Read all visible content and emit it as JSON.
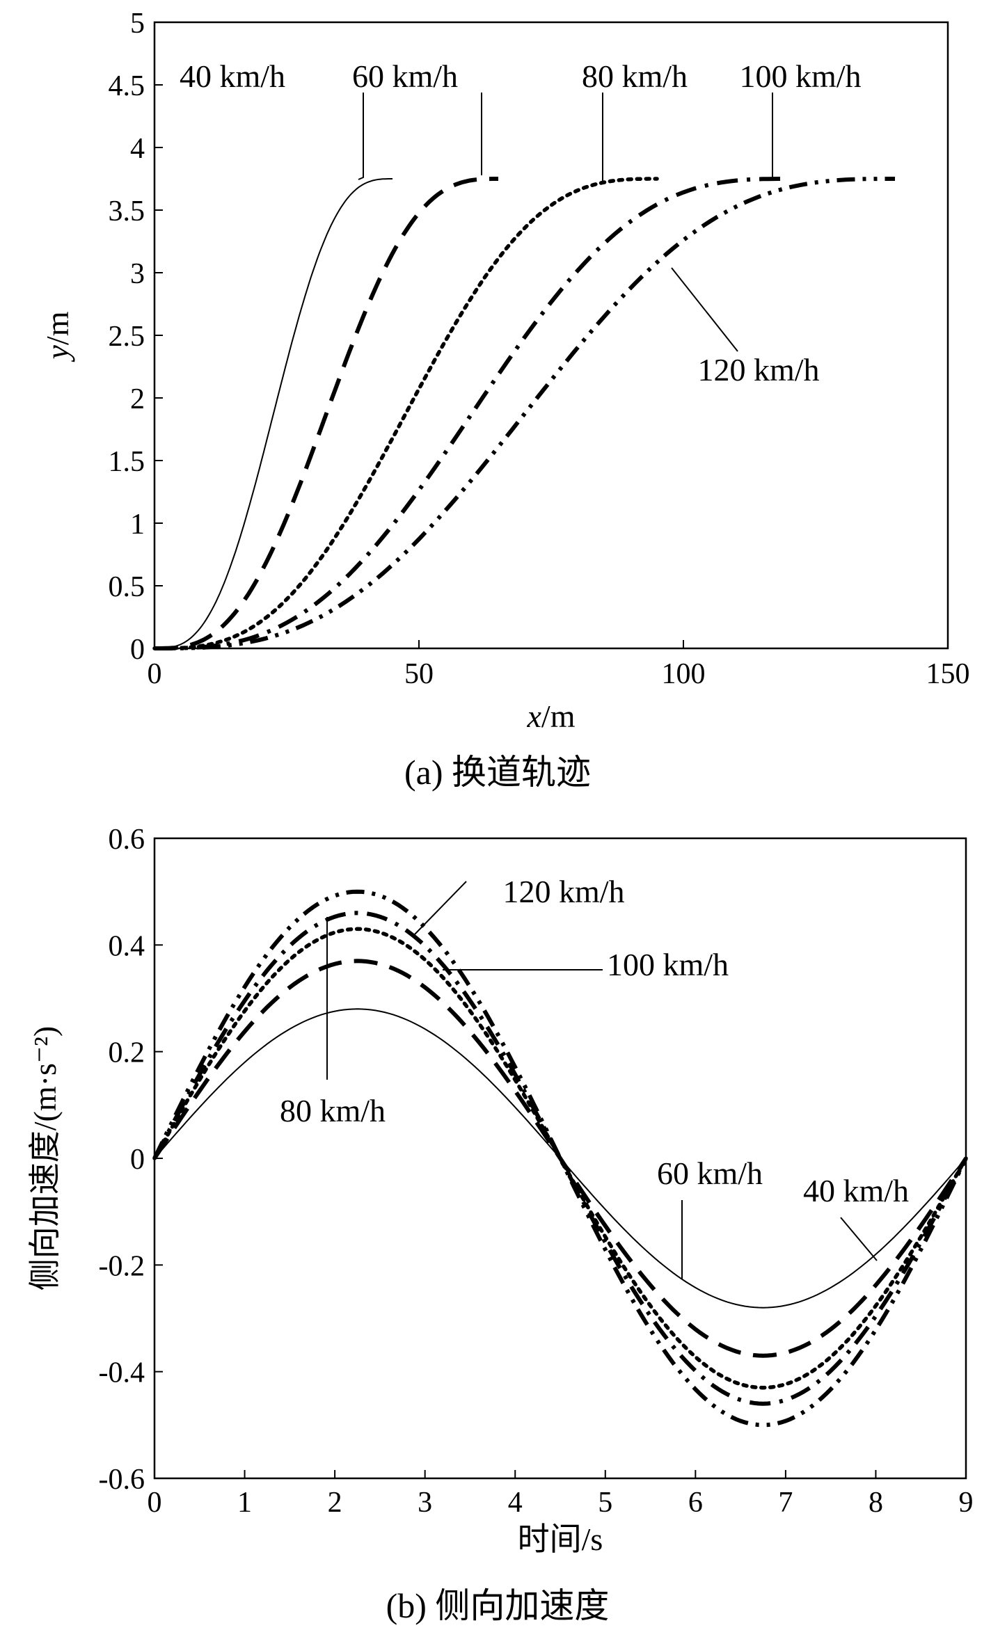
{
  "chart_data": [
    {
      "type": "line",
      "caption": "(a) 换道轨迹",
      "xlabel": "x",
      "xunit": "/m",
      "ylabel": "y",
      "yunit": "/m",
      "xlim": [
        0,
        150
      ],
      "ylim": [
        0,
        5
      ],
      "xticks": [
        0,
        50,
        100,
        150
      ],
      "yticks": [
        0,
        0.5,
        1,
        1.5,
        2,
        2.5,
        3,
        3.5,
        4,
        4.5,
        5
      ],
      "lane_width": 3.75,
      "series": [
        {
          "name": "40 km/h",
          "x_end": 45,
          "style": "solid"
        },
        {
          "name": "60 km/h",
          "x_end": 65,
          "style": "dash"
        },
        {
          "name": "80 km/h",
          "x_end": 95,
          "style": "dot"
        },
        {
          "name": "100 km/h",
          "x_end": 120,
          "style": "dashdot"
        },
        {
          "name": "120 km/h",
          "x_end": 140,
          "style": "dashdotdot"
        }
      ]
    },
    {
      "type": "line",
      "caption": "(b) 侧向加速度",
      "xlabel": "时间/s",
      "ylabel": "侧向加速度/(m·s⁻²)",
      "xlim": [
        0,
        9
      ],
      "ylim": [
        -0.6,
        0.6
      ],
      "xticks": [
        0,
        1,
        2,
        3,
        4,
        5,
        6,
        7,
        8,
        9
      ],
      "yticks": [
        -0.6,
        -0.4,
        -0.2,
        0,
        0.2,
        0.4,
        0.6
      ],
      "duration": 9,
      "series": [
        {
          "name": "40 km/h",
          "peak": 0.28,
          "style": "solid"
        },
        {
          "name": "60 km/h",
          "peak": 0.37,
          "style": "dash"
        },
        {
          "name": "80 km/h",
          "peak": 0.43,
          "style": "dot"
        },
        {
          "name": "100 km/h",
          "peak": 0.46,
          "style": "dashdot"
        },
        {
          "name": "120 km/h",
          "peak": 0.5,
          "style": "dashdotdot"
        }
      ]
    }
  ]
}
